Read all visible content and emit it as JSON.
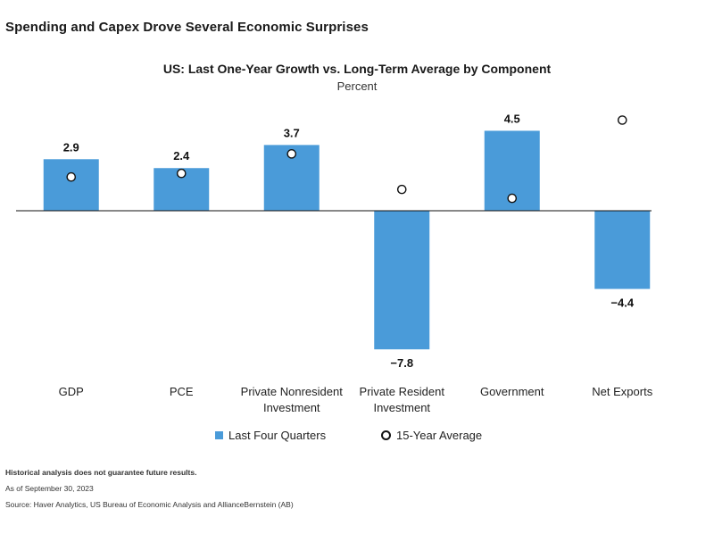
{
  "headline": "Spending and Capex Drove Several Economic Surprises",
  "chart_data": {
    "type": "bar",
    "title": "US: Last One-Year Growth vs. Long-Term Average by Component",
    "subtitle": "Percent",
    "categories": [
      [
        "GDP"
      ],
      [
        "PCE"
      ],
      [
        "Private Nonresident",
        "Investment"
      ],
      [
        "Private Resident",
        "Investment"
      ],
      [
        "Government"
      ],
      [
        "Net Exports"
      ]
    ],
    "series": [
      {
        "name": "Last Four Quarters",
        "type": "bar",
        "color": "#4a9bd9",
        "values": [
          2.9,
          2.4,
          3.7,
          -7.8,
          4.5,
          -4.4
        ],
        "labels": [
          "2.9",
          "2.4",
          "3.7",
          "−7.8",
          "4.5",
          "−4.4"
        ]
      },
      {
        "name": "15-Year Average",
        "type": "scatter",
        "marker": "hollow-circle",
        "values": [
          1.9,
          2.1,
          3.2,
          1.2,
          0.7,
          5.1
        ]
      }
    ],
    "ylim": [
      -8.5,
      6.0
    ],
    "grid": false,
    "legend": "bottom-center"
  },
  "legend": {
    "bar_label": "Last Four Quarters",
    "marker_label": "15-Year Average"
  },
  "footer": {
    "disclaimer": "Historical analysis does not guarantee future results.",
    "asof": "As of September 30, 2023",
    "source": "Source: Haver Analytics, US Bureau of Economic Analysis and AllianceBernstein (AB)"
  }
}
